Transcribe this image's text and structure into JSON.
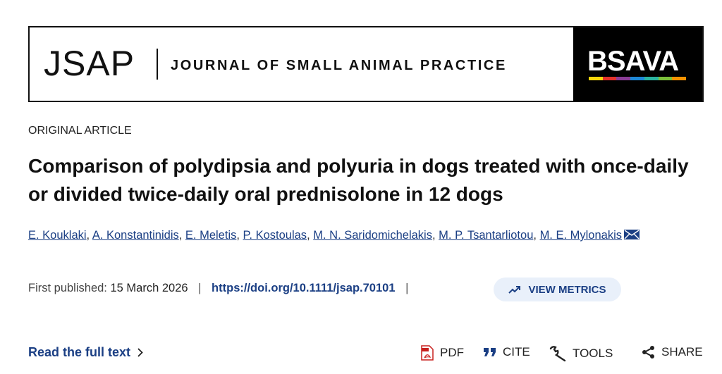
{
  "banner": {
    "logo": "JSAP",
    "journal": "JOURNAL OF SMALL ANIMAL PRACTICE",
    "publisher": "BSAVA"
  },
  "article": {
    "type": "ORIGINAL ARTICLE",
    "title": "Comparison of polydipsia and polyuria in dogs treated with once-daily or divided twice-daily oral prednisolone in 12 dogs",
    "authors": [
      "E. Kouklaki",
      "A. Konstantinidis",
      "E. Meletis",
      "P. Kostoulas",
      "M. N. Saridomichelakis",
      "M. P. Tsantarliotou",
      "M. E. Mylonakis"
    ],
    "separator": ",",
    "published_label": "First published:",
    "published_date": "15 March 2026",
    "divider": "|",
    "doi": "https://doi.org/10.1111/jsap.70101",
    "metrics": "VIEW METRICS"
  },
  "actions": {
    "full_text": "Read the full text",
    "pdf": "PDF",
    "cite": "CITE",
    "tools": "TOOLS",
    "share": "SHARE"
  }
}
